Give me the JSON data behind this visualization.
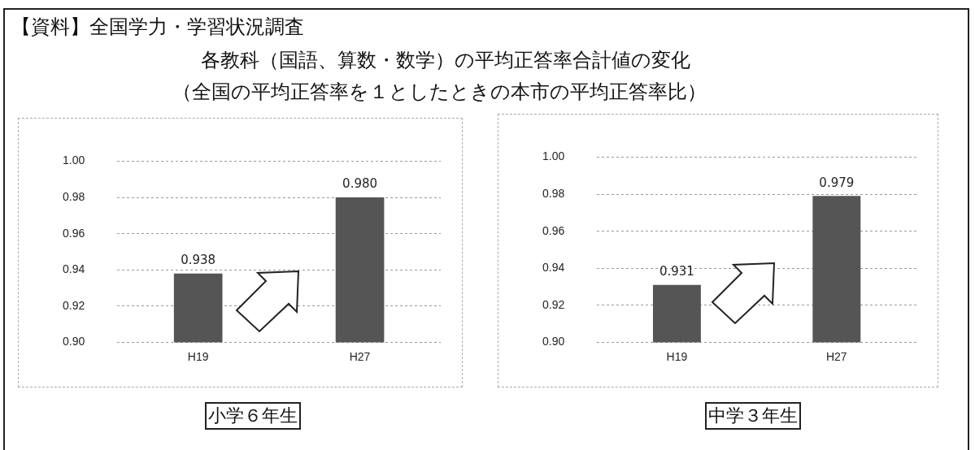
{
  "chart_data": [
    {
      "type": "bar",
      "title": "【資料】全国学力・学習状況調査",
      "subtitle": "各教科（国語、算数・数学）の平均正答率合計値の変化",
      "annotations": [
        "（全国の平均正答率を１としたときの本市の平均正答率比）"
      ],
      "xlabel": "小学６年生",
      "categories": [
        "H19",
        "H27"
      ],
      "values": [
        0.938,
        0.98
      ],
      "value_labels": [
        "0.938",
        "0.980"
      ],
      "color": "#555555",
      "ylim": [
        0.9,
        1.0
      ],
      "yticks": [
        {
          "value": 0.9,
          "label": "0.90"
        },
        {
          "value": 0.92,
          "label": "0.92"
        },
        {
          "value": 0.94,
          "label": "0.94"
        },
        {
          "value": 0.96,
          "label": "0.96"
        },
        {
          "value": 0.98,
          "label": "0.98"
        },
        {
          "value": 1.0,
          "label": "1.00"
        }
      ],
      "grid": "y"
    },
    {
      "type": "bar",
      "xlabel": "中学３年生",
      "categories": [
        "H19",
        "H27"
      ],
      "values": [
        0.931,
        0.979
      ],
      "value_labels": [
        "0.931",
        "0.979"
      ],
      "color": "#555555",
      "ylim": [
        0.9,
        1.0
      ],
      "yticks": [
        {
          "value": 0.9,
          "label": "0.90"
        },
        {
          "value": 0.92,
          "label": "0.92"
        },
        {
          "value": 0.94,
          "label": "0.94"
        },
        {
          "value": 0.96,
          "label": "0.96"
        },
        {
          "value": 0.98,
          "label": "0.98"
        },
        {
          "value": 1.0,
          "label": "1.00"
        }
      ],
      "grid": "y"
    }
  ]
}
